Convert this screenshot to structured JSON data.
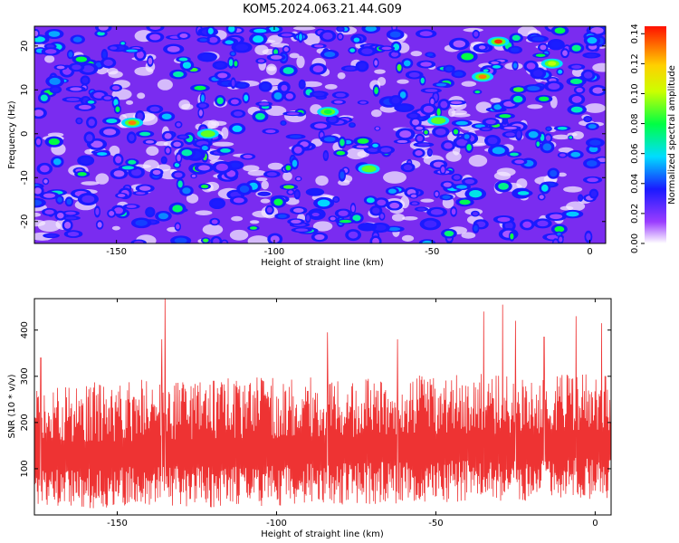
{
  "title": "KOM5.2024.063.21.44.G09",
  "chart_data": [
    {
      "type": "heatmap",
      "xlabel": "Height of straight line (km)",
      "ylabel": "Frequency (Hz)",
      "xlim": [
        -176,
        5
      ],
      "ylim": [
        -25,
        24.5
      ],
      "x_ticks": [
        -150,
        -100,
        -50,
        0
      ],
      "x_tick_labels": [
        "-150",
        "-100",
        "-50",
        "0"
      ],
      "y_ticks": [
        20,
        10,
        0,
        -10,
        -20
      ],
      "y_tick_labels": [
        "20",
        "10",
        "0",
        "-10",
        "-20"
      ],
      "colorbar": {
        "label": "Normalized spectral amplitude",
        "range": [
          0,
          0.145
        ],
        "ticks": [
          0.0,
          0.02,
          0.04,
          0.06,
          0.08,
          0.1,
          0.12,
          0.14
        ],
        "tick_labels": [
          "0.00",
          "0.02",
          "0.04",
          "0.06",
          "0.08",
          "0.10",
          "0.12",
          "0.14"
        ],
        "colors": [
          "#ffffff",
          "#8000ff",
          "#0000ff",
          "#00ffff",
          "#00ff00",
          "#ffff00",
          "#ff0000"
        ]
      },
      "peaks": [
        {
          "x": -145,
          "y": 2.5,
          "value": 0.13
        },
        {
          "x": -29,
          "y": 21,
          "value": 0.14
        },
        {
          "x": -34,
          "y": 13,
          "value": 0.13
        },
        {
          "x": -48,
          "y": 3,
          "value": 0.09
        },
        {
          "x": -121,
          "y": 0,
          "value": 0.09
        },
        {
          "x": -83,
          "y": 5,
          "value": 0.08
        },
        {
          "x": -70,
          "y": -8,
          "value": 0.09
        },
        {
          "x": -12,
          "y": 16,
          "value": 0.1
        }
      ]
    },
    {
      "type": "line",
      "xlabel": "Height of straight line (km)",
      "ylabel": "SNR (10 * v/v)",
      "xlim": [
        -176,
        5
      ],
      "ylim": [
        0,
        468
      ],
      "x_ticks": [
        -150,
        -100,
        -50,
        0
      ],
      "x_tick_labels": [
        "-150",
        "-100",
        "-50",
        "0"
      ],
      "y_ticks": [
        100,
        200,
        300,
        400
      ],
      "y_tick_labels": [
        "100",
        "200",
        "300",
        "400"
      ],
      "color": "#ee3333",
      "baseline": 125,
      "spread": 70,
      "peaks": [
        {
          "x": -135,
          "y": 468
        },
        {
          "x": -136,
          "y": 380
        },
        {
          "x": -174,
          "y": 340
        },
        {
          "x": -29,
          "y": 455
        },
        {
          "x": -35,
          "y": 440
        },
        {
          "x": -6,
          "y": 430
        },
        {
          "x": 2,
          "y": 415
        },
        {
          "x": -84,
          "y": 395
        },
        {
          "x": -62,
          "y": 380
        },
        {
          "x": -25,
          "y": 420
        },
        {
          "x": -16,
          "y": 385
        }
      ]
    }
  ]
}
